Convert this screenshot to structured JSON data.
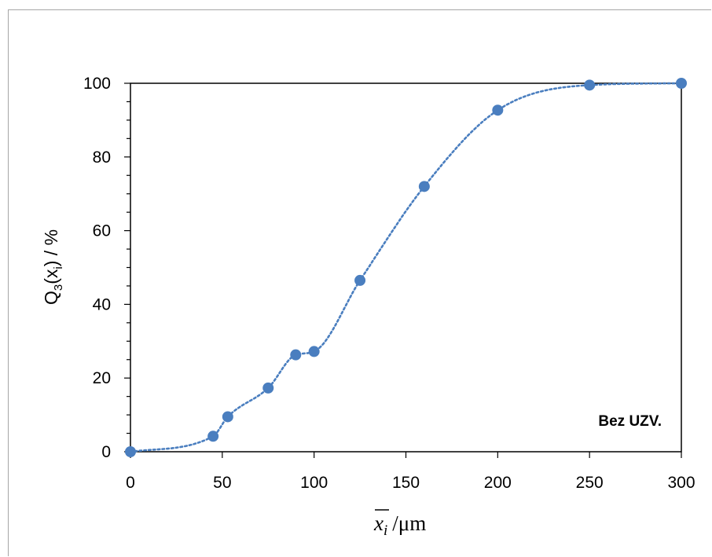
{
  "chart_data": {
    "type": "scatter",
    "x": [
      0,
      45,
      53,
      75,
      90,
      100,
      125,
      160,
      200,
      250,
      300
    ],
    "y": [
      0,
      4.2,
      9.5,
      17.3,
      26.3,
      27.2,
      46.5,
      72.0,
      92.7,
      99.5,
      100
    ],
    "xlim": [
      0,
      300
    ],
    "ylim": [
      0,
      100
    ],
    "xticks": [
      0,
      50,
      100,
      150,
      200,
      250,
      300
    ],
    "yticks": [
      0,
      20,
      40,
      60,
      80,
      100
    ],
    "xlabel": {
      "symbol": "x",
      "subscript": "i",
      "unit": "/μm"
    },
    "ylabel": {
      "main": "Q",
      "sub3": "3",
      "open": "(x",
      "subi": "i",
      "close": ") / %"
    },
    "annotation": "Bez UZV.",
    "trendline": "dotted",
    "grid": false,
    "legend": "none",
    "colors": {
      "marker": "#4a7ebf",
      "trendline": "#4a7ebf",
      "axis": "#000000"
    }
  }
}
